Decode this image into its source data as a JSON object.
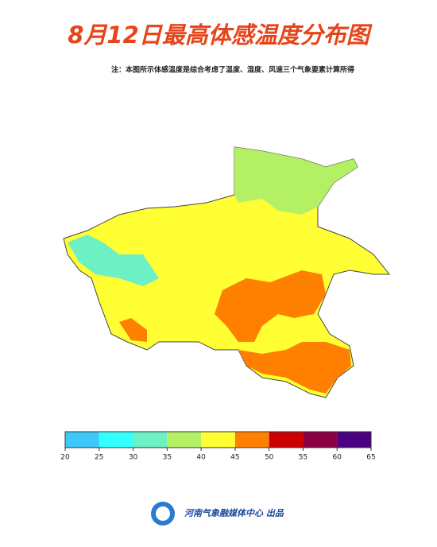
{
  "title": "8月12日最高体感温度分布图",
  "note": "注：本图所示体感温度是综合考虑了温度、湿度、风速三个气象要素计算所得",
  "legend": {
    "ticks": [
      20,
      25,
      30,
      35,
      40,
      45,
      50,
      55,
      60,
      65
    ],
    "colors": [
      "#3ec8f8",
      "#33ffff",
      "#6cf0c4",
      "#b4f064",
      "#ffff33",
      "#ff8000",
      "#cc0000",
      "#8b0045",
      "#4b0082"
    ]
  },
  "footer": "河南气象融媒体中心 出品"
}
